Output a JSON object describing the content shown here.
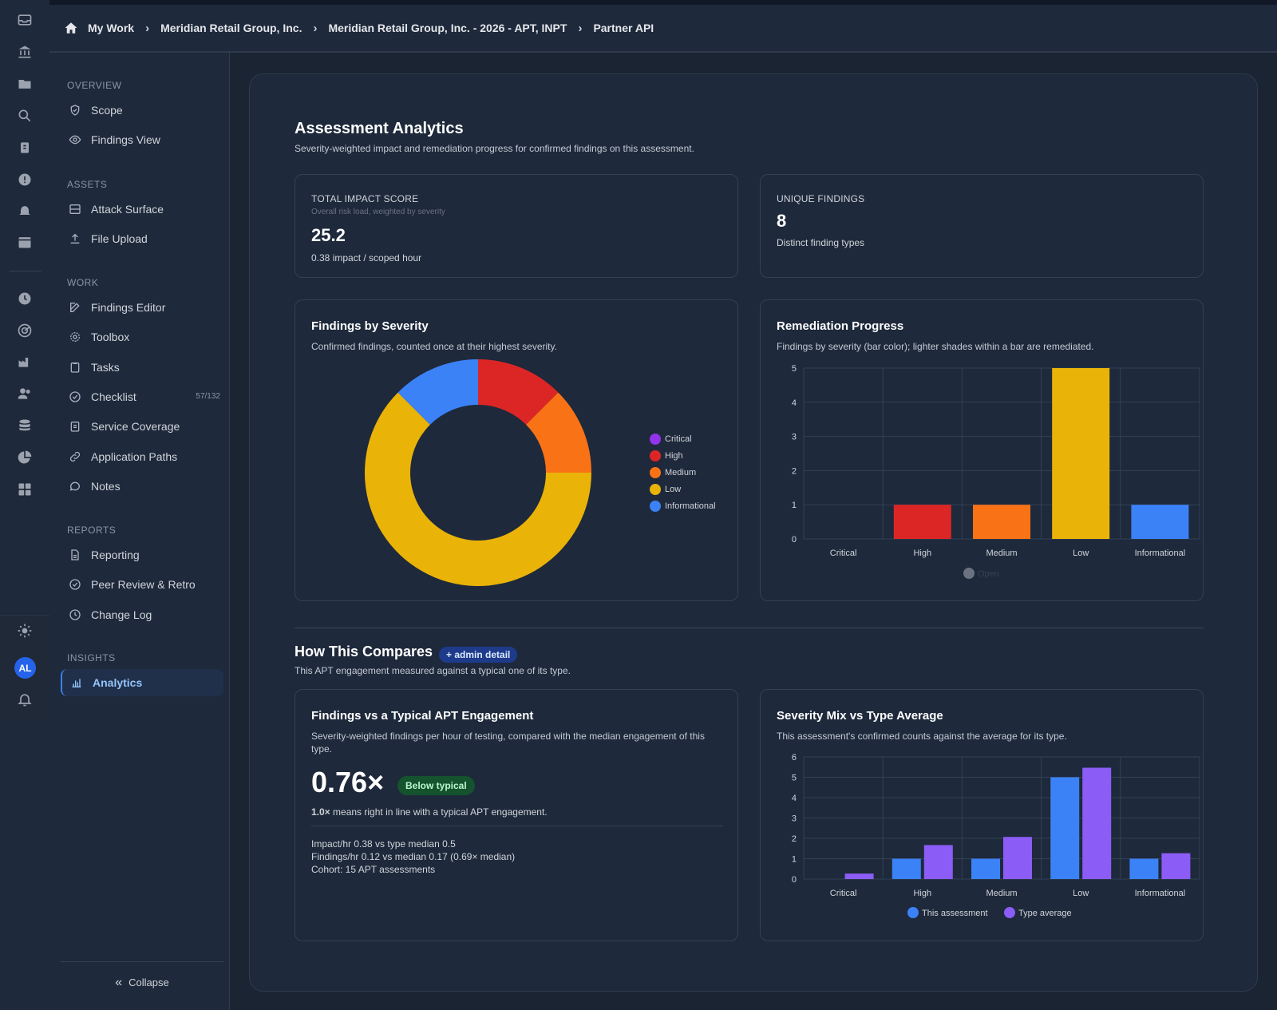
{
  "rail": {
    "icons": [
      "inbox-icon",
      "bank-icon",
      "folder-icon",
      "search-icon",
      "bug-report-icon",
      "alert-icon",
      "bell-icon",
      "calendar-icon",
      "clock-icon",
      "radar-icon",
      "factory-icon",
      "users-icon",
      "database-icon",
      "pie-chart-icon",
      "grid-icon"
    ],
    "avatar": "AL"
  },
  "breadcrumb": [
    "My Work",
    "Meridian Retail Group, Inc.",
    "Meridian Retail Group, Inc. - 2026 - APT, INPT",
    "Partner API"
  ],
  "sidebar": {
    "sections": [
      {
        "title": "OVERVIEW",
        "items": [
          {
            "label": "Scope",
            "icon": "shield-icon"
          },
          {
            "label": "Findings View",
            "icon": "eye-icon"
          }
        ]
      },
      {
        "title": "ASSETS",
        "items": [
          {
            "label": "Attack Surface",
            "icon": "server-icon"
          },
          {
            "label": "File Upload",
            "icon": "upload-icon"
          }
        ]
      },
      {
        "title": "WORK",
        "items": [
          {
            "label": "Findings Editor",
            "icon": "edit-icon"
          },
          {
            "label": "Toolbox",
            "icon": "gear-icon"
          },
          {
            "label": "Tasks",
            "icon": "clipboard-icon"
          },
          {
            "label": "Checklist",
            "icon": "check-circle-icon",
            "count": "57/132"
          },
          {
            "label": "Service Coverage",
            "icon": "clipboard-list-icon"
          },
          {
            "label": "Application Paths",
            "icon": "link-icon"
          },
          {
            "label": "Notes",
            "icon": "chat-icon"
          }
        ]
      },
      {
        "title": "REPORTS",
        "items": [
          {
            "label": "Reporting",
            "icon": "document-icon"
          },
          {
            "label": "Peer Review & Retro",
            "icon": "check-circle-icon"
          },
          {
            "label": "Change Log",
            "icon": "clock-icon"
          }
        ]
      },
      {
        "title": "INSIGHTS",
        "items": [
          {
            "label": "Analytics",
            "icon": "bar-chart-icon",
            "active": true
          }
        ]
      }
    ],
    "collapse": "Collapse"
  },
  "main": {
    "title": "Assessment Analytics",
    "subtitle": "Severity-weighted impact and remediation progress for confirmed findings on this assessment.",
    "kpi_impact": {
      "label": "TOTAL IMPACT SCORE",
      "help": "Overall risk load, weighted by severity",
      "value": "25.2",
      "detail": "0.38 impact / scoped hour"
    },
    "kpi_unique": {
      "label": "UNIQUE FINDINGS",
      "value": "8",
      "detail": "Distinct finding types"
    },
    "severity_card": {
      "title": "Findings by Severity",
      "subtitle": "Confirmed findings, counted once at their highest severity."
    },
    "remediation_card": {
      "title": "Remediation Progress",
      "subtitle": "Findings by severity (bar color); lighter shades within a bar are remediated.",
      "legend": "Open"
    },
    "compare": {
      "title": "How This Compares",
      "badge": "+ admin detail",
      "subtitle": "This APT engagement measured against a typical one of its type."
    },
    "typical_card": {
      "title": "Findings vs a Typical APT Engagement",
      "subtitle": "Severity-weighted findings per hour of testing, compared with the median engagement of this type.",
      "value": "0.76×",
      "pill": "Below typical",
      "note_bold": "1.0×",
      "note_rest": " means right in line with a typical APT engagement.",
      "line1": "Impact/hr 0.38 vs type median 0.5",
      "line2": "Findings/hr 0.12 vs median 0.17 (0.69× median)",
      "line3": "Cohort: 15 APT assessments"
    },
    "mix_card": {
      "title": "Severity Mix vs Type Average",
      "subtitle": "This assessment's confirmed counts against the average for its type."
    }
  },
  "colors": {
    "critical": "#9333ea",
    "high": "#dc2626",
    "medium": "#f97316",
    "low": "#eab308",
    "informational": "#3b82f6",
    "this_assessment": "#3b82f6",
    "type_average": "#8b5cf6",
    "open": "#6b7280"
  },
  "chart_data": [
    {
      "type": "pie",
      "categories": [
        "Critical",
        "High",
        "Medium",
        "Low",
        "Informational"
      ],
      "values": [
        0,
        1,
        1,
        5,
        1
      ],
      "legend_position": "right"
    },
    {
      "type": "bar",
      "categories": [
        "Critical",
        "High",
        "Medium",
        "Low",
        "Informational"
      ],
      "series": [
        {
          "name": "Open",
          "values": [
            0,
            1,
            1,
            5,
            1
          ]
        }
      ],
      "ylim": [
        0,
        5
      ],
      "yticks": [
        0,
        1,
        2,
        3,
        4,
        5
      ],
      "grid": true,
      "legend_position": "bottom"
    },
    {
      "type": "bar",
      "categories": [
        "Critical",
        "High",
        "Medium",
        "Low",
        "Informational"
      ],
      "series": [
        {
          "name": "This assessment",
          "values": [
            0,
            1,
            1,
            5,
            1
          ]
        },
        {
          "name": "Type average",
          "values": [
            0.27,
            1.67,
            2.07,
            5.47,
            1.27
          ]
        }
      ],
      "ylim": [
        0,
        6
      ],
      "yticks": [
        0,
        1,
        2,
        3,
        4,
        5,
        6
      ],
      "grid": true,
      "legend_position": "bottom"
    }
  ]
}
